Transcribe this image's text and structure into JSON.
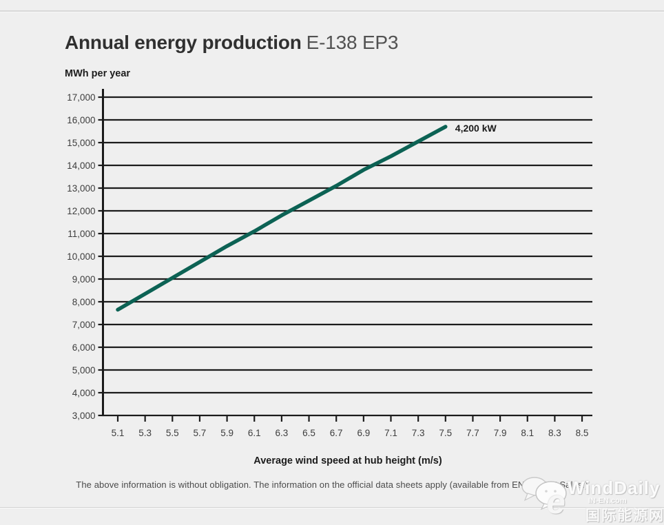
{
  "header": {
    "title": "Annual energy production",
    "model": "E-138 EP3"
  },
  "footer": {
    "disclaimer": "The above information is without obligation. The information on the official data sheets apply (available from ENERCON Sales.)"
  },
  "watermark": {
    "brand": "WindDaily",
    "logo_letter": "e",
    "site": "IN-EN.com",
    "site_cn": "国际能源网"
  },
  "colors": {
    "background": "#efefef",
    "grid": "#1b1b1b",
    "tick_label": "#3d3d3d",
    "annotation": "#1a1a1a"
  },
  "chart_data": {
    "type": "line",
    "title": "Annual energy production E-138 EP3",
    "xlabel": "Average wind speed at hub height (m/s)",
    "ylabel": "MWh per year",
    "xlim": [
      5.1,
      8.5
    ],
    "ylim": [
      3000,
      17000
    ],
    "x_ticks": [
      5.1,
      5.3,
      5.5,
      5.7,
      5.9,
      6.1,
      6.3,
      6.5,
      6.7,
      6.9,
      7.1,
      7.3,
      7.5,
      7.7,
      7.9,
      8.1,
      8.3,
      8.5
    ],
    "y_ticks": [
      3000,
      4000,
      5000,
      6000,
      7000,
      8000,
      9000,
      10000,
      11000,
      12000,
      13000,
      14000,
      15000,
      16000,
      17000
    ],
    "grid": "horizontal",
    "legend_position": "inline-label-at-line-end",
    "series": [
      {
        "name": "4,200 kW",
        "color": "#0c6254",
        "x": [
          5.1,
          5.3,
          5.5,
          5.7,
          5.9,
          6.1,
          6.3,
          6.5,
          6.7,
          6.9,
          7.1,
          7.3,
          7.5
        ],
        "values": [
          7650,
          8350,
          9050,
          9750,
          10450,
          11100,
          11800,
          12450,
          13100,
          13800,
          14400,
          15050,
          15700
        ]
      }
    ]
  }
}
